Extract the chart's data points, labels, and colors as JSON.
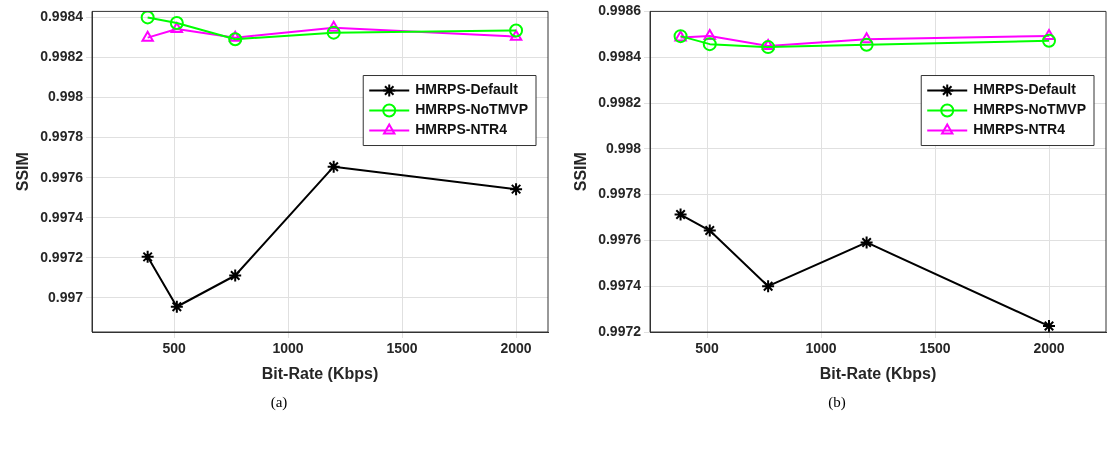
{
  "chart_data": [
    {
      "type": "line",
      "xlabel": "Bit-Rate (Kbps)",
      "ylabel": "SSIM",
      "annotations": [
        "(a)"
      ],
      "x": [
        384,
        512,
        768,
        1200,
        2000
      ],
      "xlim": [
        140,
        2140
      ],
      "xticks": [
        500,
        1000,
        1500,
        2000
      ],
      "ylim": [
        0.99683,
        0.99843
      ],
      "yticks": [
        0.997,
        0.9972,
        0.9974,
        0.9976,
        0.9978,
        0.998,
        0.9982,
        0.9984
      ],
      "grid": true,
      "legend": "right",
      "line_style": "solid",
      "series": [
        {
          "name": "HMRPS-Default",
          "color": "#000000",
          "marker": "cross",
          "values": [
            0.997205,
            0.996956,
            0.997112,
            0.997655,
            0.997543
          ]
        },
        {
          "name": "HMRPS-NoTMVP",
          "color": "#00ff00",
          "marker": "circle",
          "values": [
            0.9984,
            0.998372,
            0.998291,
            0.998324,
            0.998335
          ]
        },
        {
          "name": "HMRPS-NTR4",
          "color": "#ff00ff",
          "marker": "triangle",
          "values": [
            0.998299,
            0.998342,
            0.998299,
            0.998348,
            0.998304
          ]
        }
      ]
    },
    {
      "type": "line",
      "xlabel": "Bit-Rate (Kbps)",
      "ylabel": "SSIM",
      "annotations": [
        "(b)"
      ],
      "x": [
        384,
        512,
        768,
        1200,
        2000
      ],
      "xlim": [
        250,
        2250
      ],
      "xticks": [
        500,
        1000,
        1500,
        2000
      ],
      "ylim": [
        0.9972,
        0.9986
      ],
      "yticks": [
        0.9972,
        0.9974,
        0.9976,
        0.9978,
        0.998,
        0.9982,
        0.9984,
        0.9986
      ],
      "grid": true,
      "legend": "right",
      "line_style": "solid",
      "series": [
        {
          "name": "HMRPS-Default",
          "color": "#000000",
          "marker": "cross",
          "values": [
            0.997713,
            0.997643,
            0.9974,
            0.997591,
            0.997226
          ]
        },
        {
          "name": "HMRPS-NoTMVP",
          "color": "#00ff00",
          "marker": "circle",
          "values": [
            0.998492,
            0.998457,
            0.998444,
            0.998454,
            0.998472
          ]
        },
        {
          "name": "HMRPS-NTR4",
          "color": "#ff00ff",
          "marker": "triangle",
          "values": [
            0.998486,
            0.998493,
            0.998449,
            0.998478,
            0.998493
          ]
        }
      ]
    }
  ]
}
